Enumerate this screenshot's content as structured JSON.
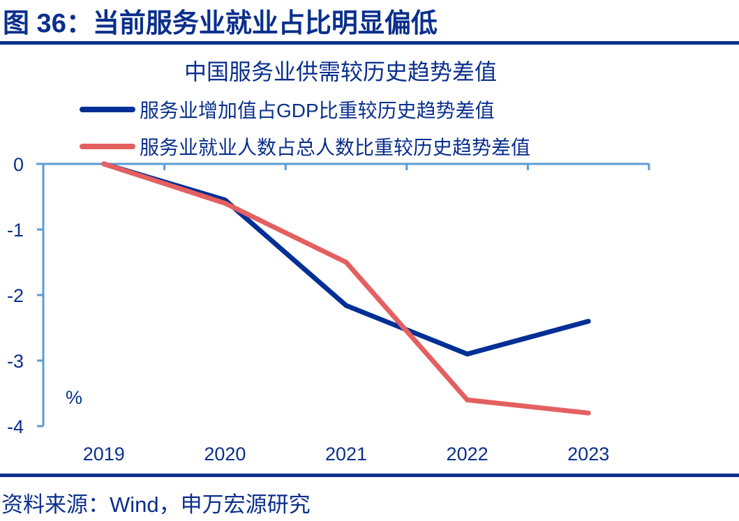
{
  "figure": {
    "title": "图 36：当前服务业就业占比明显偏低",
    "source": "资料来源：Wind，申万宏源研究"
  },
  "chart_data": {
    "type": "line",
    "title": "中国服务业供需较历史趋势差值",
    "xlabel": "",
    "ylabel": "%",
    "categories": [
      "2019",
      "2020",
      "2021",
      "2022",
      "2023"
    ],
    "ylim": [
      -4,
      0
    ],
    "yticks": [
      0,
      -1,
      -2,
      -3,
      -4
    ],
    "ytick_labels": [
      "0",
      "-1",
      "-2",
      "-3",
      "-4"
    ],
    "grid": false,
    "legend_position": "top",
    "series": [
      {
        "name": "服务业增加值占GDP比重较历史趋势差值",
        "color": "#002f95",
        "values": [
          0,
          -0.55,
          -2.16,
          -2.9,
          -2.4
        ]
      },
      {
        "name": "服务业就业人数占总人数比重较历史趋势差值",
        "color": "#e46060",
        "values": [
          0,
          -0.6,
          -1.5,
          -3.6,
          -3.8
        ]
      }
    ],
    "axis_color": "#5b9bd5"
  }
}
